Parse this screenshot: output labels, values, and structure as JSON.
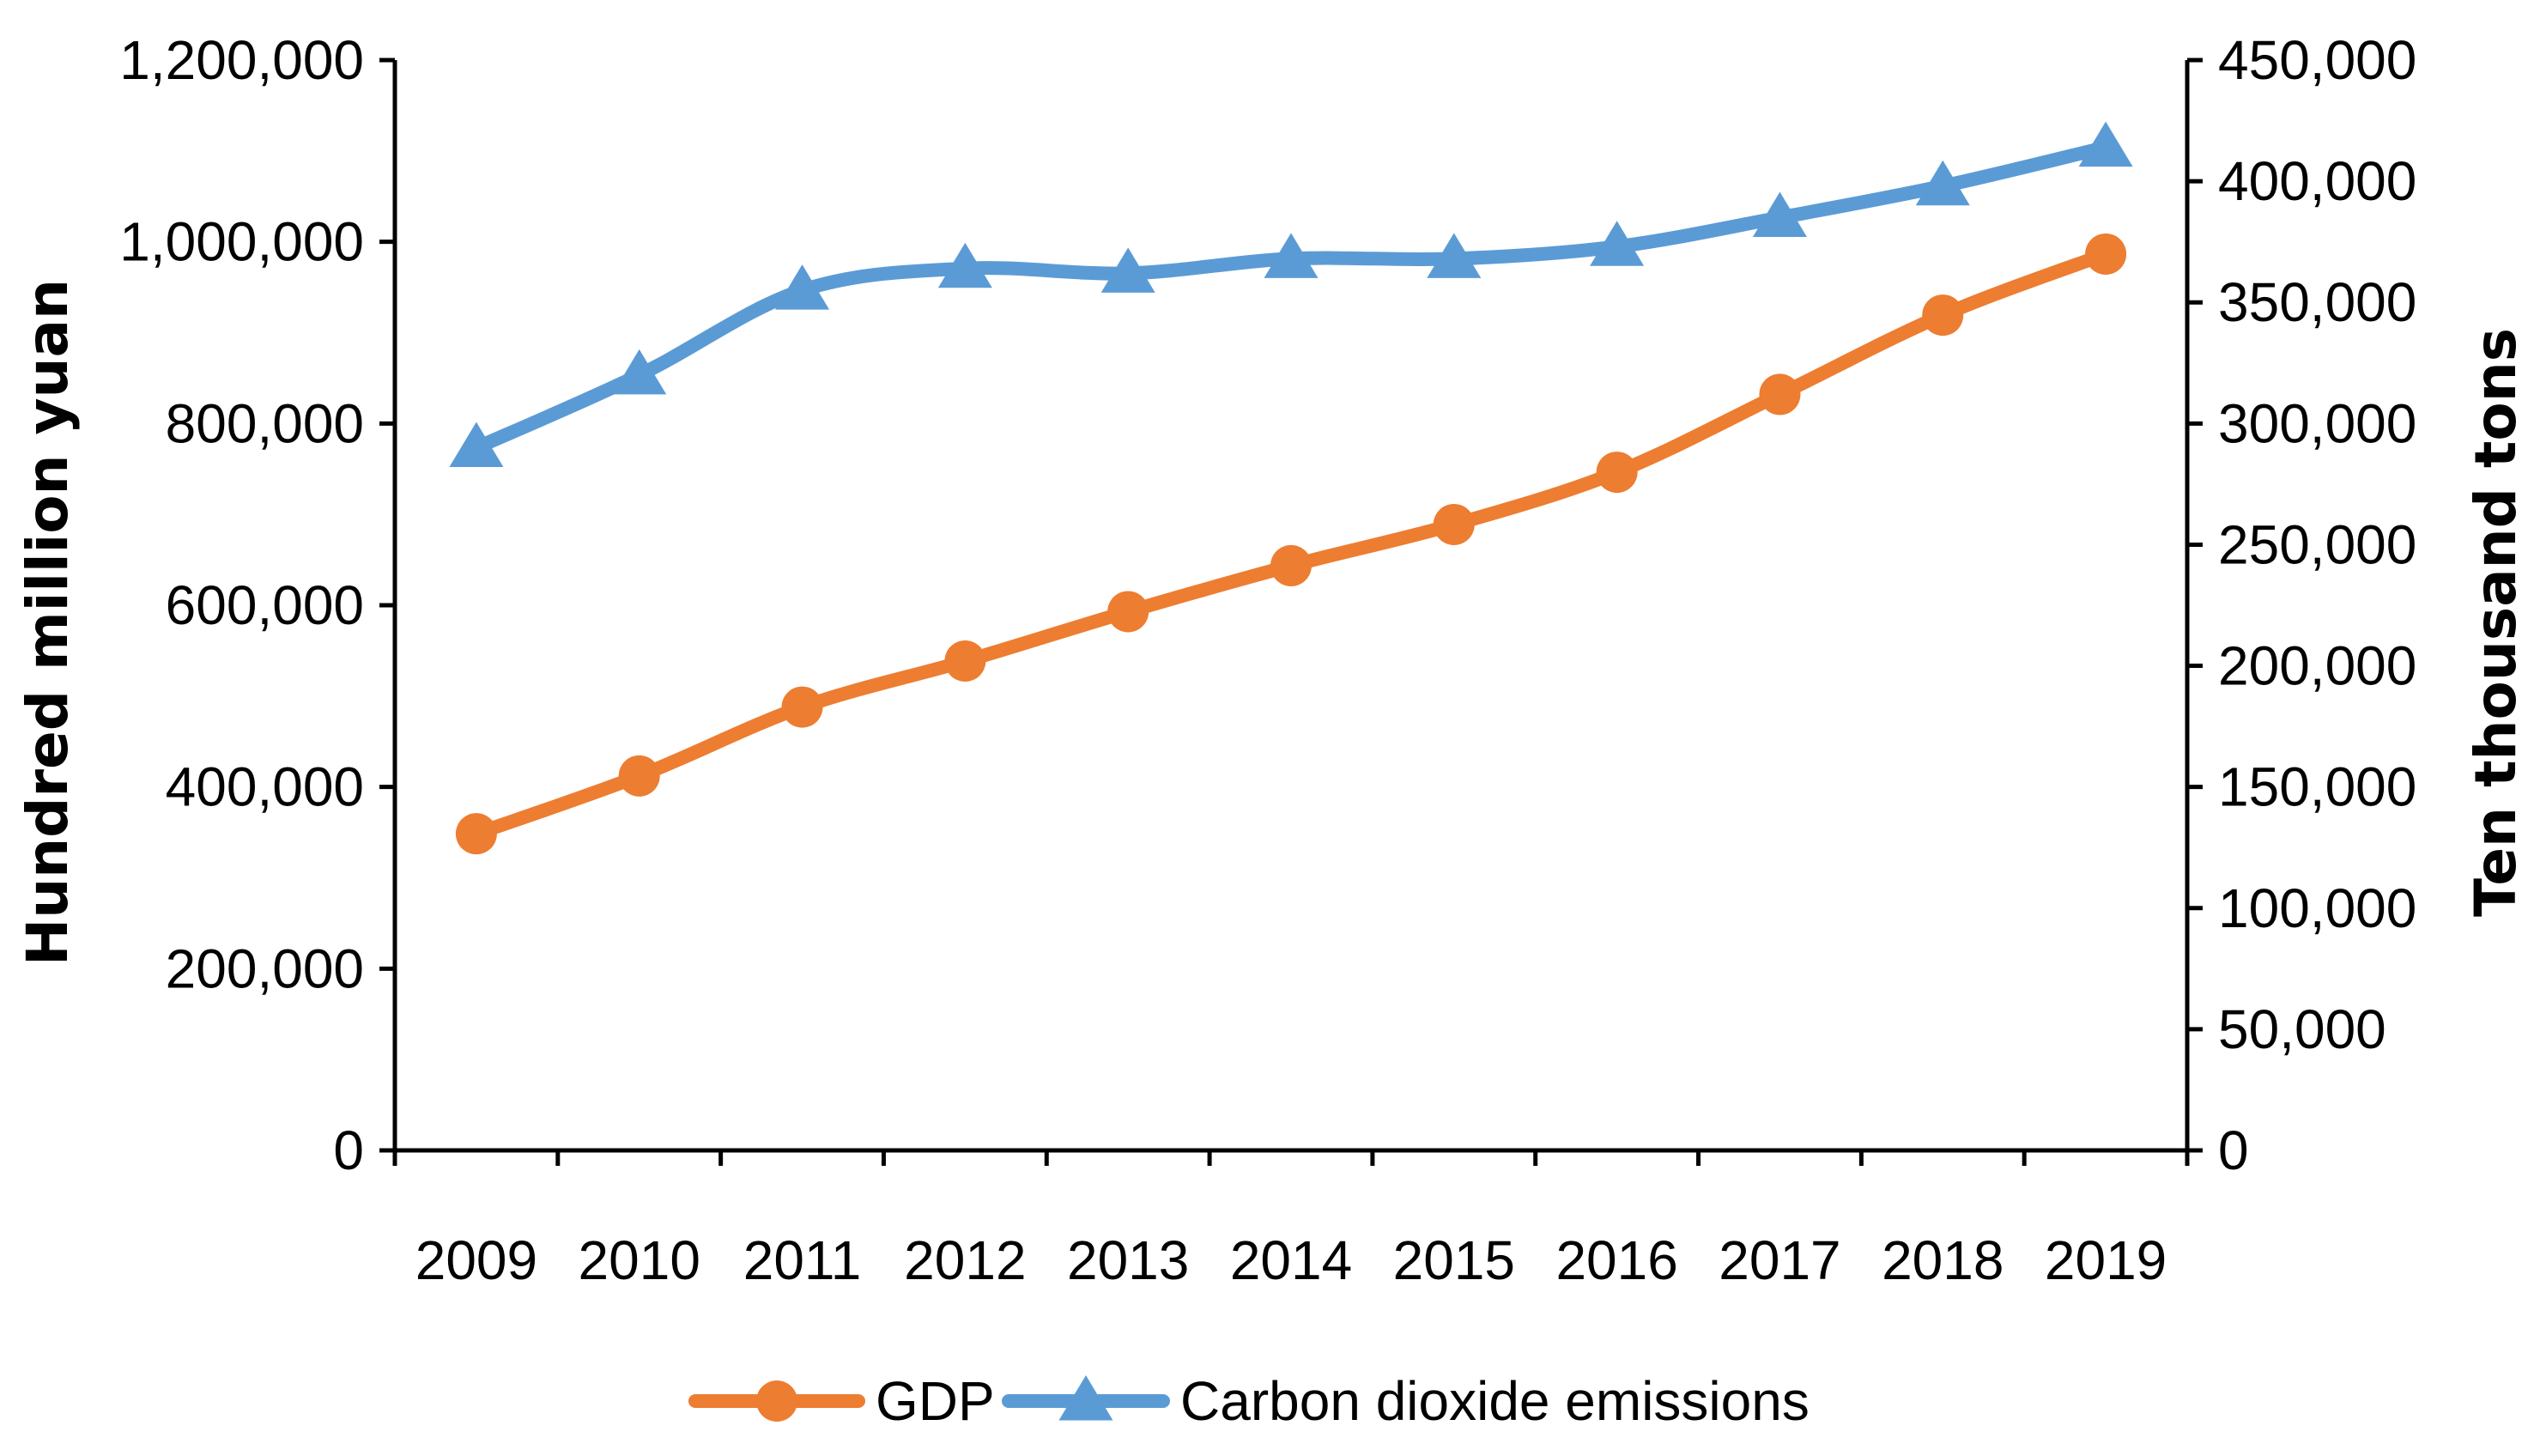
{
  "chart_data": {
    "type": "line",
    "categories": [
      "2009",
      "2010",
      "2011",
      "2012",
      "2013",
      "2014",
      "2015",
      "2016",
      "2017",
      "2018",
      "2019"
    ],
    "series": [
      {
        "name": "GDP",
        "axis": "left",
        "color": "#ed7d31",
        "marker": "circle",
        "values": [
          348518,
          412119,
          487940,
          538580,
          592963,
          643563,
          688858,
          746395,
          832036,
          919281,
          986515
        ]
      },
      {
        "name": "Carbon dioxide emissions",
        "axis": "right",
        "color": "#5b9bd5",
        "marker": "triangle",
        "values": [
          290000,
          320000,
          355000,
          364000,
          362000,
          368000,
          368000,
          373000,
          385000,
          398000,
          414000
        ]
      }
    ],
    "left_axis": {
      "label": "Hundred million yuan",
      "range": [
        0,
        1200000
      ],
      "ticks": [
        "0",
        "200,000",
        "400,000",
        "600,000",
        "800,000",
        "1,000,000",
        "1,200,000"
      ]
    },
    "right_axis": {
      "label": "Ten thousand tons",
      "range": [
        0,
        450000
      ],
      "ticks": [
        "0",
        "50,000",
        "100,000",
        "150,000",
        "200,000",
        "250,000",
        "300,000",
        "350,000",
        "400,000",
        "450,000"
      ]
    },
    "grid": false,
    "legend_position": "bottom"
  }
}
